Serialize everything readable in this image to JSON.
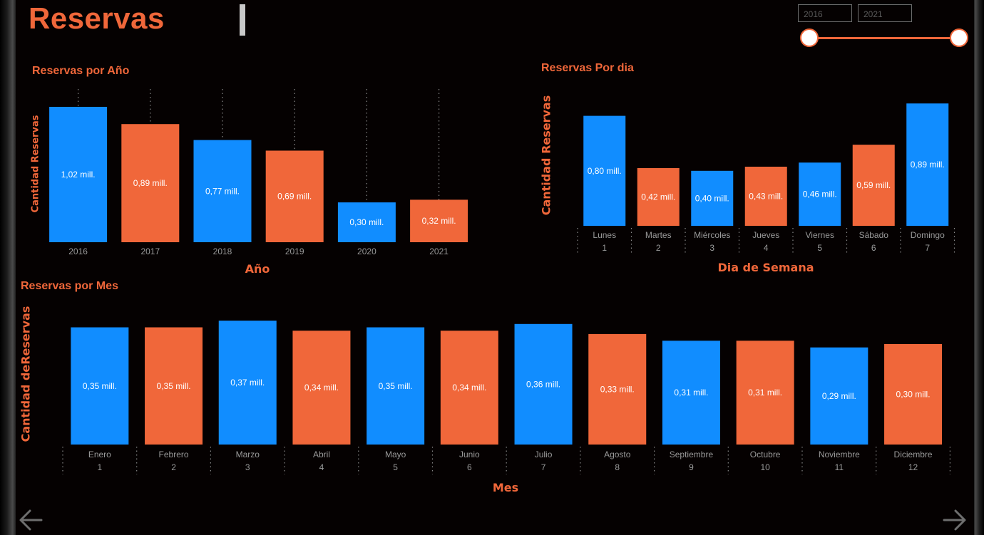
{
  "page": {
    "title": "Reservas"
  },
  "slicer": {
    "from": "2016",
    "to": "2021"
  },
  "colors": {
    "blue": "#118dff",
    "orange": "#f0673a",
    "axis_text": "#9a9a9a",
    "label_text": "#ffffff"
  },
  "icons": {
    "prev": "arrow-left-icon",
    "next": "arrow-right-icon"
  },
  "chart_data": [
    {
      "id": "anio",
      "type": "bar",
      "title": "Reservas por Año",
      "xlabel": "Año",
      "ylabel": "Cantidad Reservas",
      "unit": "mill.",
      "categories": [
        "2016",
        "2017",
        "2018",
        "2019",
        "2020",
        "2021"
      ],
      "values": [
        1.02,
        0.89,
        0.77,
        0.69,
        0.3,
        0.32
      ],
      "colors": [
        "#118dff",
        "#f0673a",
        "#118dff",
        "#f0673a",
        "#118dff",
        "#f0673a"
      ],
      "data_labels": [
        "1,02 mill.",
        "0,89 mill.",
        "0,77 mill.",
        "0,69 mill.",
        "0,30 mill.",
        "0,32 mill."
      ],
      "grid": false
    },
    {
      "id": "dia",
      "type": "bar",
      "title": "Reservas Por dia",
      "xlabel": "Dia de Semana",
      "ylabel": "Cantidad Reservas",
      "unit": "mill.",
      "categories": [
        "Lunes",
        "Martes",
        "Miércoles",
        "Jueves",
        "Viernes",
        "Sábado",
        "Domingo"
      ],
      "sub_categories": [
        "1",
        "2",
        "3",
        "4",
        "5",
        "6",
        "7"
      ],
      "values": [
        0.8,
        0.42,
        0.4,
        0.43,
        0.46,
        0.59,
        0.89
      ],
      "colors": [
        "#118dff",
        "#f0673a",
        "#118dff",
        "#f0673a",
        "#118dff",
        "#f0673a",
        "#118dff"
      ],
      "data_labels": [
        "0,80 mill.",
        "0,42 mill.",
        "0,40 mill.",
        "0,43 mill.",
        "0,46 mill.",
        "0,59 mill.",
        "0,89 mill."
      ],
      "grid": false
    },
    {
      "id": "mes",
      "type": "bar",
      "title": "Reservas por Mes",
      "xlabel": "Mes",
      "ylabel": "Cantidad deReservas",
      "unit": "mill.",
      "categories": [
        "Enero",
        "Febrero",
        "Marzo",
        "Abril",
        "Mayo",
        "Junio",
        "Julio",
        "Agosto",
        "Septiembre",
        "Octubre",
        "Noviembre",
        "Diciembre"
      ],
      "sub_categories": [
        "1",
        "2",
        "3",
        "4",
        "5",
        "6",
        "7",
        "8",
        "9",
        "10",
        "11",
        "12"
      ],
      "values": [
        0.35,
        0.35,
        0.37,
        0.34,
        0.35,
        0.34,
        0.36,
        0.33,
        0.31,
        0.31,
        0.29,
        0.3
      ],
      "colors": [
        "#118dff",
        "#f0673a",
        "#118dff",
        "#f0673a",
        "#118dff",
        "#f0673a",
        "#118dff",
        "#f0673a",
        "#118dff",
        "#f0673a",
        "#118dff",
        "#f0673a"
      ],
      "data_labels": [
        "0,35 mill.",
        "0,35 mill.",
        "0,37 mill.",
        "0,34 mill.",
        "0,35 mill.",
        "0,34 mill.",
        "0,36 mill.",
        "0,33 mill.",
        "0,31 mill.",
        "0,31 mill.",
        "0,29 mill.",
        "0,30 mill."
      ],
      "grid": false
    }
  ]
}
